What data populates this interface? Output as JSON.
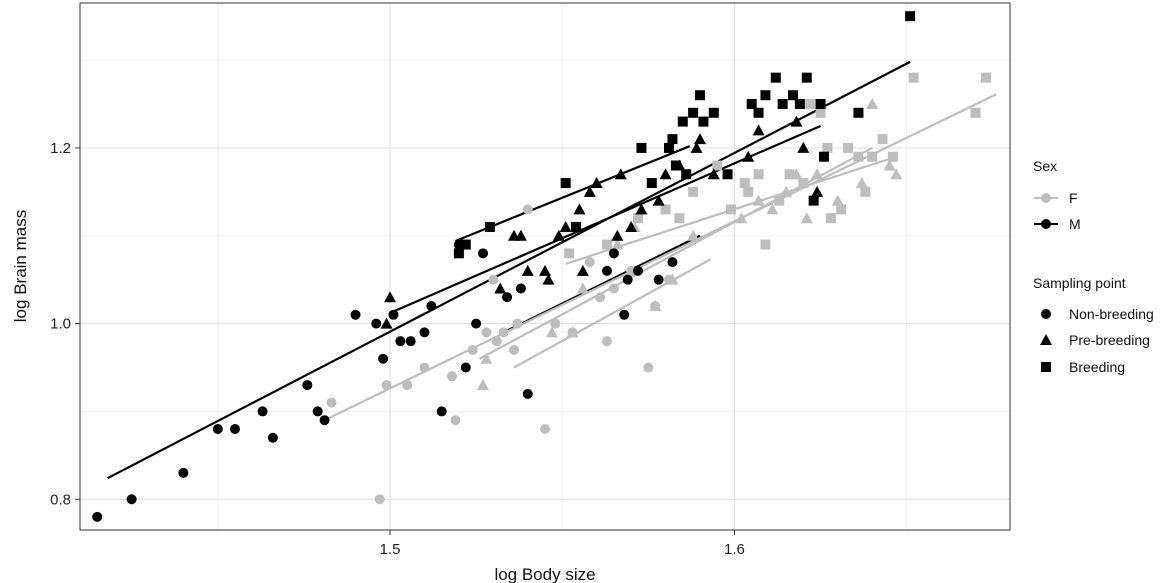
{
  "chart_data": {
    "type": "scatter",
    "title": "",
    "xlabel": "log Body size",
    "ylabel": "log Brain mass",
    "xlim": [
      1.41,
      1.68
    ],
    "ylim": [
      0.765,
      1.365
    ],
    "x_ticks": [
      1.5,
      1.6
    ],
    "x_tick_labels": [
      "1.5",
      "1.6"
    ],
    "y_ticks": [
      0.8,
      1.0,
      1.2
    ],
    "y_tick_labels": [
      "0.8",
      "1.0",
      "1.2"
    ],
    "grid": true,
    "legend_position": "right",
    "legend": {
      "sex_title": "Sex",
      "sex_entries": [
        {
          "label": "F",
          "color": "#bdbdbd"
        },
        {
          "label": "M",
          "color": "#000000"
        }
      ],
      "sampling_title": "Sampling point",
      "sampling_entries": [
        {
          "label": "Non-breeding",
          "shape": "circle"
        },
        {
          "label": "Pre-breeding",
          "shape": "triangle"
        },
        {
          "label": "Breeding",
          "shape": "square"
        }
      ]
    },
    "series": [
      {
        "sex": "M",
        "sampling": "Non-breeding",
        "color": "#000000",
        "shape": "circle",
        "points": [
          [
            1.415,
            0.78
          ],
          [
            1.425,
            0.8
          ],
          [
            1.44,
            0.83
          ],
          [
            1.45,
            0.88
          ],
          [
            1.455,
            0.88
          ],
          [
            1.463,
            0.9
          ],
          [
            1.466,
            0.87
          ],
          [
            1.476,
            0.93
          ],
          [
            1.479,
            0.9
          ],
          [
            1.481,
            0.89
          ],
          [
            1.49,
            1.01
          ],
          [
            1.496,
            1.0
          ],
          [
            1.498,
            0.96
          ],
          [
            1.501,
            1.01
          ],
          [
            1.503,
            0.98
          ],
          [
            1.506,
            0.98
          ],
          [
            1.51,
            0.99
          ],
          [
            1.512,
            1.02
          ],
          [
            1.515,
            0.9
          ],
          [
            1.522,
            0.95
          ],
          [
            1.525,
            1.0
          ],
          [
            1.52,
            1.09
          ],
          [
            1.527,
            1.08
          ],
          [
            1.534,
            1.03
          ],
          [
            1.538,
            1.04
          ],
          [
            1.54,
            0.92
          ],
          [
            1.563,
            1.06
          ],
          [
            1.565,
            1.08
          ],
          [
            1.568,
            1.01
          ],
          [
            1.569,
            1.05
          ],
          [
            1.572,
            1.06
          ],
          [
            1.578,
            1.05
          ],
          [
            1.582,
            1.07
          ]
        ]
      },
      {
        "sex": "M",
        "sampling": "Pre-breeding",
        "color": "#000000",
        "shape": "triangle",
        "points": [
          [
            1.499,
            1.0
          ],
          [
            1.5,
            1.03
          ],
          [
            1.532,
            1.04
          ],
          [
            1.536,
            1.1
          ],
          [
            1.538,
            1.1
          ],
          [
            1.54,
            1.06
          ],
          [
            1.545,
            1.06
          ],
          [
            1.546,
            1.05
          ],
          [
            1.549,
            1.1
          ],
          [
            1.551,
            1.11
          ],
          [
            1.555,
            1.13
          ],
          [
            1.556,
            1.06
          ],
          [
            1.558,
            1.15
          ],
          [
            1.56,
            1.16
          ],
          [
            1.566,
            1.1
          ],
          [
            1.567,
            1.17
          ],
          [
            1.57,
            1.11
          ],
          [
            1.573,
            1.13
          ],
          [
            1.578,
            1.14
          ],
          [
            1.58,
            1.17
          ],
          [
            1.584,
            1.18
          ],
          [
            1.589,
            1.2
          ],
          [
            1.59,
            1.21
          ],
          [
            1.594,
            1.17
          ],
          [
            1.604,
            1.19
          ],
          [
            1.607,
            1.22
          ],
          [
            1.618,
            1.23
          ],
          [
            1.62,
            1.2
          ],
          [
            1.624,
            1.15
          ]
        ]
      },
      {
        "sex": "M",
        "sampling": "Breeding",
        "color": "#000000",
        "shape": "square",
        "points": [
          [
            1.52,
            1.08
          ],
          [
            1.522,
            1.09
          ],
          [
            1.529,
            1.11
          ],
          [
            1.551,
            1.16
          ],
          [
            1.554,
            1.11
          ],
          [
            1.573,
            1.2
          ],
          [
            1.576,
            1.16
          ],
          [
            1.581,
            1.2
          ],
          [
            1.582,
            1.21
          ],
          [
            1.583,
            1.18
          ],
          [
            1.585,
            1.23
          ],
          [
            1.586,
            1.17
          ],
          [
            1.588,
            1.24
          ],
          [
            1.59,
            1.26
          ],
          [
            1.591,
            1.23
          ],
          [
            1.594,
            1.24
          ],
          [
            1.598,
            1.17
          ],
          [
            1.605,
            1.25
          ],
          [
            1.607,
            1.24
          ],
          [
            1.609,
            1.26
          ],
          [
            1.612,
            1.28
          ],
          [
            1.614,
            1.25
          ],
          [
            1.617,
            1.26
          ],
          [
            1.619,
            1.25
          ],
          [
            1.621,
            1.28
          ],
          [
            1.623,
            1.14
          ],
          [
            1.625,
            1.25
          ],
          [
            1.626,
            1.19
          ],
          [
            1.636,
            1.24
          ],
          [
            1.651,
            1.35
          ]
        ]
      },
      {
        "sex": "F",
        "sampling": "Non-breeding",
        "color": "#bdbdbd",
        "shape": "circle",
        "points": [
          [
            1.483,
            0.91
          ],
          [
            1.497,
            0.8
          ],
          [
            1.499,
            0.93
          ],
          [
            1.505,
            0.93
          ],
          [
            1.51,
            0.95
          ],
          [
            1.518,
            0.94
          ],
          [
            1.519,
            0.89
          ],
          [
            1.524,
            0.97
          ],
          [
            1.528,
            0.99
          ],
          [
            1.531,
            0.98
          ],
          [
            1.533,
            0.99
          ],
          [
            1.536,
            0.97
          ],
          [
            1.537,
            1.0
          ],
          [
            1.53,
            1.05
          ],
          [
            1.54,
            1.13
          ],
          [
            1.545,
            0.88
          ],
          [
            1.548,
            1.0
          ],
          [
            1.553,
            0.99
          ],
          [
            1.558,
            1.07
          ],
          [
            1.561,
            1.03
          ],
          [
            1.563,
            0.98
          ],
          [
            1.565,
            1.04
          ],
          [
            1.57,
            1.06
          ],
          [
            1.575,
            0.95
          ],
          [
            1.577,
            1.02
          ],
          [
            1.581,
            1.05
          ]
        ]
      },
      {
        "sex": "F",
        "sampling": "Pre-breeding",
        "color": "#bdbdbd",
        "shape": "triangle",
        "points": [
          [
            1.527,
            0.93
          ],
          [
            1.528,
            0.96
          ],
          [
            1.547,
            0.99
          ],
          [
            1.553,
            0.99
          ],
          [
            1.556,
            1.04
          ],
          [
            1.566,
            1.09
          ],
          [
            1.571,
            1.11
          ],
          [
            1.577,
            1.02
          ],
          [
            1.582,
            1.05
          ],
          [
            1.588,
            1.1
          ],
          [
            1.602,
            1.12
          ],
          [
            1.607,
            1.14
          ],
          [
            1.611,
            1.13
          ],
          [
            1.615,
            1.15
          ],
          [
            1.618,
            1.17
          ],
          [
            1.621,
            1.12
          ],
          [
            1.624,
            1.17
          ],
          [
            1.63,
            1.14
          ],
          [
            1.637,
            1.16
          ],
          [
            1.64,
            1.25
          ],
          [
            1.645,
            1.18
          ],
          [
            1.647,
            1.17
          ]
        ]
      },
      {
        "sex": "F",
        "sampling": "Breeding",
        "color": "#bdbdbd",
        "shape": "square",
        "points": [
          [
            1.552,
            1.08
          ],
          [
            1.563,
            1.09
          ],
          [
            1.572,
            1.12
          ],
          [
            1.58,
            1.13
          ],
          [
            1.584,
            1.12
          ],
          [
            1.588,
            1.15
          ],
          [
            1.595,
            1.18
          ],
          [
            1.599,
            1.13
          ],
          [
            1.603,
            1.16
          ],
          [
            1.604,
            1.15
          ],
          [
            1.607,
            1.17
          ],
          [
            1.609,
            1.09
          ],
          [
            1.613,
            1.14
          ],
          [
            1.616,
            1.17
          ],
          [
            1.62,
            1.16
          ],
          [
            1.622,
            1.25
          ],
          [
            1.625,
            1.24
          ],
          [
            1.627,
            1.2
          ],
          [
            1.628,
            1.12
          ],
          [
            1.631,
            1.13
          ],
          [
            1.633,
            1.2
          ],
          [
            1.636,
            1.19
          ],
          [
            1.638,
            1.15
          ],
          [
            1.64,
            1.19
          ],
          [
            1.643,
            1.21
          ],
          [
            1.646,
            1.19
          ],
          [
            1.652,
            1.28
          ],
          [
            1.67,
            1.24
          ],
          [
            1.673,
            1.28
          ]
        ]
      }
    ],
    "fit_lines": [
      {
        "sex": "M",
        "color": "#000000",
        "x": [
          1.418,
          1.651
        ],
        "y": [
          0.824,
          1.298
        ]
      },
      {
        "sex": "M",
        "color": "#000000",
        "x": [
          1.5,
          1.625
        ],
        "y": [
          1.012,
          1.225
        ]
      },
      {
        "sex": "M",
        "color": "#000000",
        "x": [
          1.519,
          1.587
        ],
        "y": [
          1.094,
          1.202
        ]
      },
      {
        "sex": "M",
        "color": "#000000",
        "x": [
          1.533,
          1.59
        ],
        "y": [
          0.99,
          1.1
        ]
      },
      {
        "sex": "F",
        "color": "#bdbdbd",
        "x": [
          1.482,
          1.676
        ],
        "y": [
          0.892,
          1.261
        ]
      },
      {
        "sex": "F",
        "color": "#bdbdbd",
        "x": [
          1.526,
          1.64
        ],
        "y": [
          0.96,
          1.2
        ]
      },
      {
        "sex": "F",
        "color": "#bdbdbd",
        "x": [
          1.551,
          1.647
        ],
        "y": [
          1.068,
          1.19
        ]
      },
      {
        "sex": "F",
        "color": "#bdbdbd",
        "x": [
          1.536,
          1.593
        ],
        "y": [
          0.95,
          1.073
        ]
      }
    ]
  }
}
